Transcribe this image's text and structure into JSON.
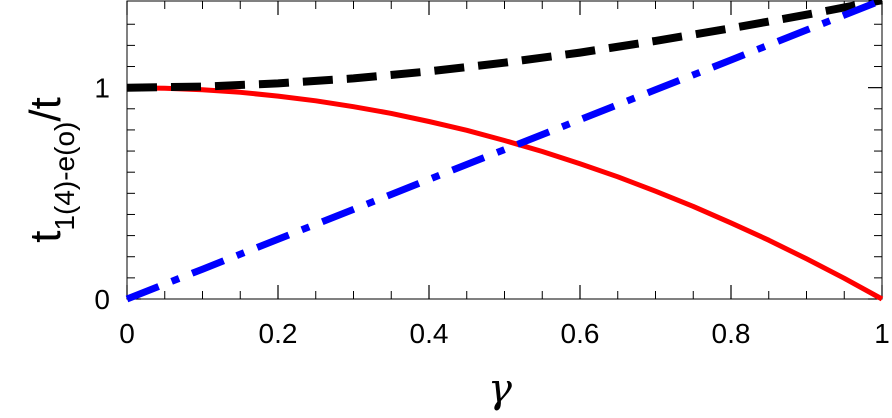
{
  "chart_data": {
    "type": "line",
    "xlabel": "γ",
    "ylabel": {
      "main": "t",
      "subscript": "1(4)-e(o)",
      "suffix": "/t"
    },
    "xlim": [
      0,
      1
    ],
    "ylim": [
      0,
      1.41
    ],
    "x_ticks": [
      0,
      0.2,
      0.4,
      0.6,
      0.8,
      1
    ],
    "x_tick_labels": [
      "0",
      "0.2",
      "0.4",
      "0.6",
      "0.8",
      "1"
    ],
    "y_ticks": [
      0,
      1
    ],
    "y_tick_labels": [
      "0",
      "1"
    ],
    "grid": false,
    "legend": "none",
    "series": [
      {
        "color": "#ff0000",
        "style": "solid",
        "x": [
          0,
          0.05,
          0.1,
          0.15,
          0.2,
          0.25,
          0.3,
          0.35,
          0.4,
          0.45,
          0.5,
          0.55,
          0.6,
          0.65,
          0.7,
          0.75,
          0.8,
          0.85,
          0.9,
          0.95,
          1
        ],
        "y": [
          1.0,
          0.9975,
          0.99,
          0.978,
          0.96,
          0.938,
          0.91,
          0.878,
          0.84,
          0.798,
          0.75,
          0.698,
          0.64,
          0.578,
          0.51,
          0.438,
          0.36,
          0.278,
          0.19,
          0.098,
          0.0
        ]
      },
      {
        "color": "#000000",
        "style": "dashed",
        "x": [
          0,
          0.1,
          0.2,
          0.3,
          0.4,
          0.5,
          0.6,
          0.7,
          0.8,
          0.9,
          1
        ],
        "y": [
          1.0,
          1.005,
          1.02,
          1.044,
          1.077,
          1.118,
          1.166,
          1.221,
          1.281,
          1.345,
          1.414
        ]
      },
      {
        "color": "#0000ff",
        "style": "dashdot",
        "x": [
          0,
          0.1,
          0.2,
          0.3,
          0.4,
          0.5,
          0.6,
          0.7,
          0.8,
          0.9,
          1
        ],
        "y": [
          0.0,
          0.141,
          0.283,
          0.424,
          0.566,
          0.707,
          0.849,
          0.99,
          1.131,
          1.273,
          1.414
        ]
      }
    ]
  }
}
